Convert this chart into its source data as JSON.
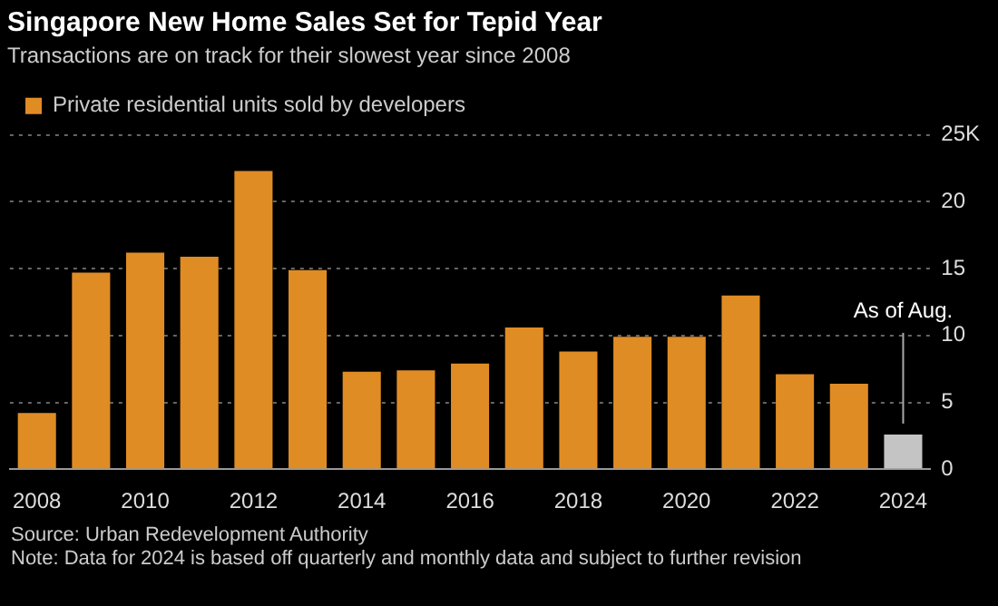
{
  "chart_data": {
    "type": "bar",
    "title": "Singapore New Home Sales Set for Tepid Year",
    "subtitle": "Transactions are on track for their slowest year since 2008",
    "categories": [
      "2008",
      null,
      "2010",
      null,
      "2012",
      null,
      "2014",
      null,
      "2016",
      null,
      "2018",
      null,
      "2020",
      null,
      "2022",
      null,
      "2024"
    ],
    "series": [
      {
        "name": "Private residential units sold by developers",
        "color": "#e08c24",
        "colors": [
          "#e08c24",
          "#e08c24",
          "#e08c24",
          "#e08c24",
          "#e08c24",
          "#e08c24",
          "#e08c24",
          "#e08c24",
          "#e08c24",
          "#e08c24",
          "#e08c24",
          "#e08c24",
          "#e08c24",
          "#e08c24",
          "#e08c24",
          "#e08c24",
          "#c4c4c4"
        ],
        "values": [
          4.2,
          14.7,
          16.2,
          15.9,
          22.3,
          14.9,
          7.3,
          7.4,
          7.9,
          10.6,
          8.8,
          9.9,
          9.9,
          13.0,
          7.1,
          6.4,
          2.6
        ]
      }
    ],
    "ylim": [
      0,
      25
    ],
    "yticks": [
      0,
      5,
      10,
      15,
      20,
      {
        "value": 25,
        "label": "25K"
      }
    ],
    "grid": "y",
    "legend": "top left",
    "annotations": [
      {
        "text": "As of Aug.",
        "x": "2024",
        "y": 2.6
      },
      "Source: Urban Redevelopment Authority",
      "Note: Data for 2024 is based off quarterly and monthly data and subject to further revision"
    ]
  }
}
